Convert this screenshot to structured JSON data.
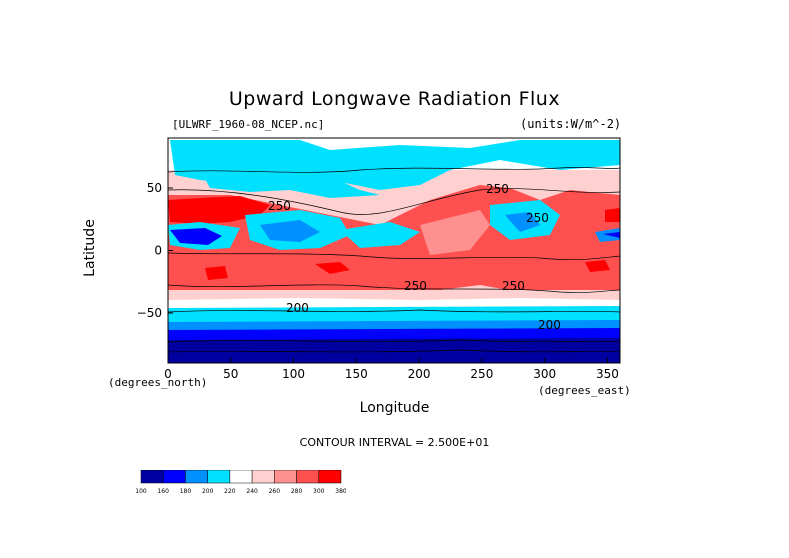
{
  "chart_data": {
    "type": "heatmap",
    "title": "Upward Longwave Radiation Flux",
    "file_label": "[ULWRF_1960-08_NCEP.nc]",
    "units_label": "(units:W/m^-2)",
    "xlabel": "Longitude",
    "ylabel": "Latitude",
    "x_units": "(degrees_north)",
    "x_units_right": "(degrees_east)",
    "xlim": [
      0,
      360
    ],
    "ylim": [
      -90,
      90
    ],
    "x_ticks": [
      "0",
      "50",
      "100",
      "150",
      "200",
      "250",
      "300",
      "350"
    ],
    "y_ticks": [
      "50",
      "0",
      "-50"
    ],
    "contour_interval": "CONTOUR INTERVAL = 2.500E+01",
    "contour_labels": [
      "250",
      "250",
      "250",
      "250",
      "250",
      "200",
      "200"
    ],
    "colorbar": {
      "levels": [
        "100",
        "160",
        "180",
        "200",
        "220",
        "240",
        "260",
        "280",
        "300",
        "380"
      ],
      "colors": [
        "#0000a0",
        "#0000ff",
        "#0090ff",
        "#00e0ff",
        "#ffffff",
        "#ffd0d0",
        "#ff9090",
        "#ff5050",
        "#ff0000"
      ]
    }
  }
}
